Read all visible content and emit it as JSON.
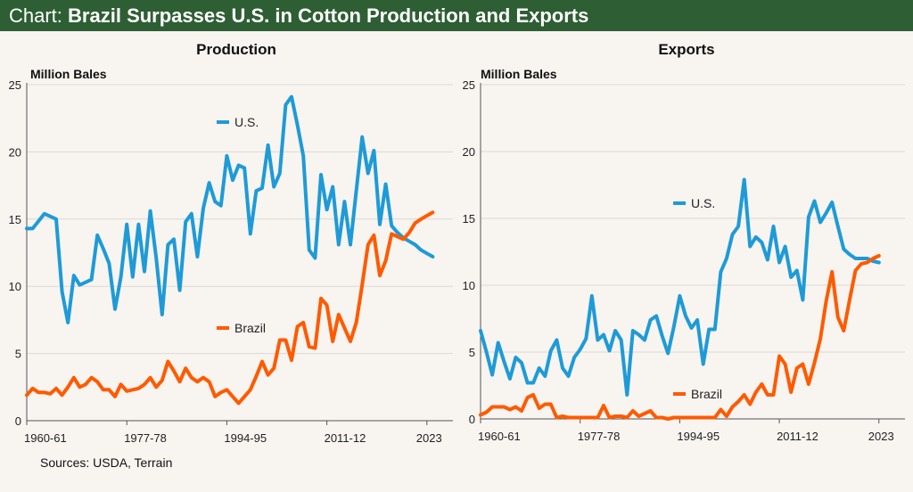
{
  "header": {
    "prefix": "Chart:",
    "title": "Brazil Surpasses U.S. in Cotton Production and Exports"
  },
  "sources": "Sources: USDA, Terrain",
  "colors": {
    "header": "#2e5e33",
    "us": "#1e9bd7",
    "brazil": "#ff5a00"
  },
  "chart_data": [
    {
      "type": "line",
      "title": "Production",
      "ylabel": "Million Bales",
      "ylim": [
        0,
        25
      ],
      "yticks": [
        0,
        5,
        10,
        15,
        20,
        25
      ],
      "xticks": [
        {
          "label": "1960-61",
          "index": 0
        },
        {
          "label": "1977-78",
          "index": 17
        },
        {
          "label": "1994-95",
          "index": 34
        },
        {
          "label": "2011-12",
          "index": 51
        },
        {
          "label": "2023",
          "index": 68
        }
      ],
      "grid": true,
      "series": [
        {
          "name": "U.S.",
          "color": "#1e9bd7",
          "values": [
            14.3,
            14.3,
            14.85,
            15.4,
            15.2,
            15.0,
            9.6,
            7.3,
            10.8,
            10.1,
            10.3,
            10.5,
            13.8,
            12.8,
            11.7,
            8.3,
            10.7,
            14.6,
            10.7,
            14.6,
            11.1,
            15.6,
            12.1,
            7.9,
            13.1,
            13.5,
            9.7,
            14.8,
            15.4,
            12.2,
            15.8,
            17.7,
            16.3,
            16.0,
            19.7,
            17.9,
            19.0,
            18.8,
            13.9,
            17.1,
            17.3,
            20.5,
            17.4,
            18.4,
            23.5,
            24.1,
            22.0,
            19.7,
            12.7,
            12.1,
            18.3,
            15.7,
            17.4,
            13.1,
            16.3,
            13.1,
            17.1,
            21.1,
            18.4,
            20.1,
            14.6,
            17.6,
            14.5,
            14.0,
            13.6,
            13.35,
            13.1,
            12.7,
            12.45,
            12.2
          ]
        },
        {
          "name": "Brazil",
          "color": "#ff5a00",
          "values": [
            1.9,
            2.4,
            2.1,
            2.1,
            2.0,
            2.4,
            1.9,
            2.5,
            3.2,
            2.5,
            2.7,
            3.2,
            2.9,
            2.3,
            2.3,
            1.8,
            2.7,
            2.2,
            2.3,
            2.4,
            2.7,
            3.2,
            2.5,
            3.0,
            4.4,
            3.7,
            2.9,
            3.9,
            3.2,
            2.9,
            3.2,
            2.9,
            1.8,
            2.1,
            2.3,
            1.8,
            1.3,
            1.8,
            2.3,
            3.3,
            4.4,
            3.4,
            3.9,
            6.0,
            6.0,
            4.5,
            7.0,
            7.3,
            5.5,
            5.4,
            9.1,
            8.6,
            5.9,
            7.9,
            6.9,
            5.9,
            7.3,
            10.1,
            13.1,
            13.8,
            10.8,
            11.9,
            13.9,
            13.7,
            13.5,
            14.0,
            14.7,
            15.0,
            15.25,
            15.5
          ]
        }
      ]
    },
    {
      "type": "line",
      "title": "Exports",
      "ylabel": "Million Bales",
      "ylim": [
        0,
        25
      ],
      "yticks": [
        0,
        5,
        10,
        15,
        20,
        25
      ],
      "xticks": [
        {
          "label": "1960-61",
          "index": 0
        },
        {
          "label": "1977-78",
          "index": 17
        },
        {
          "label": "1994-95",
          "index": 34
        },
        {
          "label": "2011-12",
          "index": 51
        },
        {
          "label": "2023",
          "index": 68
        }
      ],
      "grid": true,
      "series": [
        {
          "name": "U.S.",
          "color": "#1e9bd7",
          "values": [
            6.6,
            5.0,
            3.3,
            5.7,
            4.3,
            3.0,
            4.6,
            4.2,
            2.7,
            2.7,
            3.8,
            3.2,
            5.1,
            5.9,
            3.8,
            3.2,
            4.6,
            5.2,
            6.0,
            9.2,
            5.9,
            6.3,
            5.1,
            6.6,
            5.9,
            1.8,
            6.6,
            6.3,
            5.9,
            7.4,
            7.7,
            6.2,
            4.9,
            6.9,
            9.2,
            7.7,
            6.8,
            7.4,
            4.1,
            6.7,
            6.7,
            11.0,
            12.0,
            13.8,
            14.4,
            17.9,
            12.9,
            13.6,
            13.2,
            11.9,
            14.4,
            11.7,
            12.9,
            10.6,
            11.1,
            8.9,
            15.1,
            16.3,
            14.7,
            15.4,
            16.2,
            14.4,
            12.7,
            12.3,
            12.0,
            12.0,
            12.0,
            11.8,
            11.7
          ]
        },
        {
          "name": "Brazil",
          "color": "#ff5a00",
          "values": [
            0.3,
            0.5,
            0.9,
            0.9,
            0.9,
            0.7,
            0.9,
            0.6,
            1.6,
            1.8,
            0.8,
            1.1,
            1.1,
            0.1,
            0.2,
            0.1,
            0.1,
            0.1,
            0.1,
            0.1,
            0.1,
            1.0,
            0.1,
            0.2,
            0.2,
            0.1,
            0.6,
            0.2,
            0.4,
            0.6,
            0.1,
            0.1,
            0.0,
            0.1,
            0.1,
            0.1,
            0.1,
            0.1,
            0.1,
            0.1,
            0.1,
            0.7,
            0.2,
            0.9,
            1.3,
            1.8,
            1.1,
            2.0,
            2.6,
            1.8,
            1.8,
            4.7,
            4.1,
            2.0,
            3.8,
            4.1,
            2.6,
            4.2,
            6.0,
            8.8,
            11.0,
            7.6,
            6.6,
            8.9,
            11.1,
            11.6,
            11.7,
            12.0,
            12.2
          ]
        }
      ]
    }
  ]
}
